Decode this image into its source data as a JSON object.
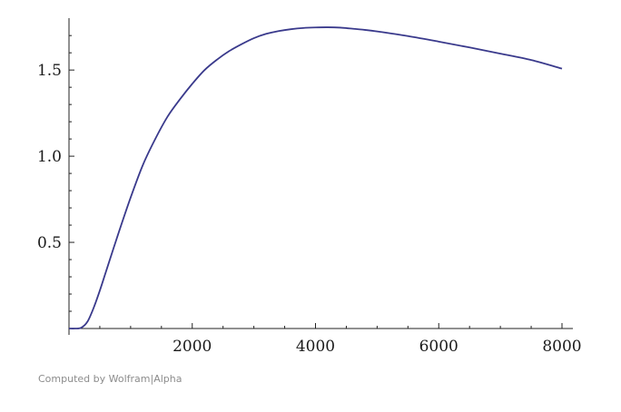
{
  "credit": "Computed by Wolfram|Alpha",
  "chart_data": {
    "type": "line",
    "title": "",
    "xlabel": "",
    "ylabel": "",
    "xlim": [
      0,
      8000
    ],
    "ylim": [
      0,
      1.78
    ],
    "grid": false,
    "line_color": "#3a3a8c",
    "x_ticks": [
      2000,
      4000,
      6000,
      8000
    ],
    "x_tick_labels": [
      "2000",
      "4000",
      "6000",
      "8000"
    ],
    "y_ticks": [
      0.5,
      1.0,
      1.5
    ],
    "y_tick_labels": [
      "0.5",
      "1.0",
      "1.5"
    ],
    "series": [
      {
        "x": [
          0,
          100,
          200,
          300,
          400,
          500,
          600,
          800,
          1000,
          1200,
          1400,
          1600,
          1800,
          2000,
          2200,
          2400,
          2600,
          2800,
          3000,
          3200,
          3400,
          3600,
          3800,
          4000,
          4200,
          4400,
          4600,
          4800,
          5000,
          5500,
          6000,
          6500,
          7000,
          7500,
          8000
        ],
        "y": [
          0,
          0.0,
          0.005,
          0.04,
          0.12,
          0.22,
          0.33,
          0.55,
          0.76,
          0.95,
          1.1,
          1.23,
          1.33,
          1.42,
          1.5,
          1.56,
          1.61,
          1.65,
          1.685,
          1.71,
          1.726,
          1.737,
          1.744,
          1.747,
          1.748,
          1.746,
          1.74,
          1.733,
          1.724,
          1.697,
          1.665,
          1.631,
          1.595,
          1.558,
          1.508
        ]
      }
    ]
  }
}
